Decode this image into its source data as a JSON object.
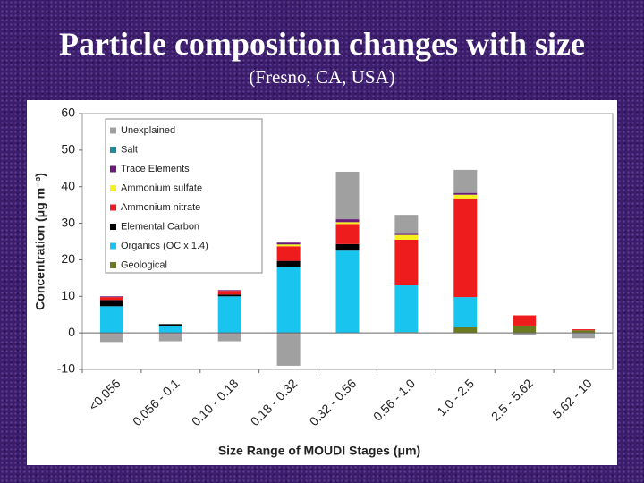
{
  "chart_data": {
    "type": "stacked_bar",
    "title": "Particle composition changes with size",
    "subtitle": "(Fresno, CA, USA)",
    "x_label": "Size Range of MOUDI Stages (μm)",
    "y_label": "Concentration (μg m⁻³)",
    "categories": [
      "<0.056",
      "0.056 - 0.1",
      "0.10 - 0.18",
      "0.18 - 0.32",
      "0.32 - 0.56",
      "0.56 - 1.0",
      "1.0 - 2.5",
      "2.5 - 5.62",
      "5.62 - 10"
    ],
    "series": [
      {
        "name": "Geological",
        "color": "#6b7a1e",
        "values": [
          0,
          0,
          0,
          0,
          0,
          0.2,
          1.5,
          2,
          0.7
        ]
      },
      {
        "name": "Organics (OC x 1.4)",
        "color": "#19c4ef",
        "values": [
          7.3,
          1.8,
          10,
          18,
          22.5,
          12.8,
          8.3,
          0,
          0
        ]
      },
      {
        "name": "Elemental Carbon",
        "color": "#000000",
        "values": [
          1.7,
          0.6,
          0.5,
          1.7,
          1.8,
          0,
          0,
          0,
          0
        ]
      },
      {
        "name": "Ammonium nitrate",
        "color": "#ee1c1c",
        "values": [
          0.8,
          0,
          1,
          4,
          5.5,
          12.5,
          27,
          2.8,
          0.3
        ]
      },
      {
        "name": "Ammonium sulfate",
        "color": "#f5f01e",
        "values": [
          0,
          0,
          0,
          0.5,
          0.5,
          1.3,
          1,
          0,
          0
        ]
      },
      {
        "name": "Trace Elements",
        "color": "#6a1b7a",
        "values": [
          0.2,
          0,
          0.2,
          0.5,
          0.8,
          0.3,
          0.5,
          0,
          0
        ]
      },
      {
        "name": "Salt",
        "color": "#1f8a9a",
        "values": [
          0,
          0,
          0,
          0,
          0,
          0,
          0,
          0,
          0
        ]
      },
      {
        "name": "Unexplained",
        "color": "#a0a0a0",
        "values": [
          -2.5,
          -2.3,
          -2.3,
          -9,
          13,
          5.2,
          6.3,
          -0.5,
          -1.5
        ]
      }
    ],
    "ylim": [
      -10,
      60
    ],
    "yticks": [
      -10,
      0,
      10,
      20,
      30,
      40,
      50,
      60
    ],
    "legend": "upper left",
    "grid": false
  }
}
